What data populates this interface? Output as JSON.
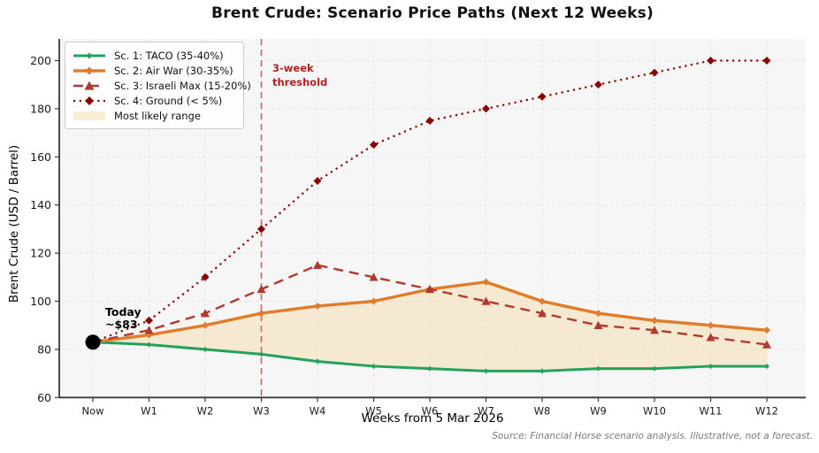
{
  "figure": {
    "source_note": "Source: Financial Horse scenario analysis. Illustrative, not a forecast."
  },
  "chart_data": {
    "type": "line",
    "title": "Brent Crude: Scenario Price Paths (Next 12 Weeks)",
    "xlabel": "Weeks from 5 Mar 2026",
    "ylabel": "Brent Crude (USD / Barrel)",
    "categories": [
      "Now",
      "W1",
      "W2",
      "W3",
      "W4",
      "W5",
      "W6",
      "W7",
      "W8",
      "W9",
      "W10",
      "W11",
      "W12"
    ],
    "yticks": [
      60,
      80,
      100,
      120,
      140,
      160,
      180,
      200
    ],
    "ylim": [
      60,
      209
    ],
    "grid": true,
    "legend_position": "upper-left",
    "plot_bg_color": "#f6f6f6",
    "grid_color": "#dcdcdc",
    "series": [
      {
        "name": "Sc. 1: TACO (35-40%)",
        "color": "#23a15d",
        "style": "solid",
        "marker": "diamond",
        "values": [
          83,
          82,
          80,
          78,
          75,
          73,
          72,
          71,
          71,
          72,
          72,
          73,
          73
        ]
      },
      {
        "name": "Sc. 2: Air War (30-35%)",
        "color": "#e07c2a",
        "style": "solid",
        "marker": "diamond",
        "values": [
          83,
          86,
          90,
          95,
          98,
          100,
          105,
          108,
          100,
          95,
          92,
          90,
          88
        ]
      },
      {
        "name": "Sc. 3: Israeli Max (15-20%)",
        "color": "#b03a2e",
        "style": "dashed",
        "marker": "triangle",
        "values": [
          83,
          88,
          95,
          105,
          115,
          110,
          105,
          100,
          95,
          90,
          88,
          85,
          82
        ]
      },
      {
        "name": "Sc. 4: Ground (< 5%)",
        "color": "#8b0000",
        "style": "dotted",
        "marker": "diamond",
        "values": [
          83,
          92,
          110,
          130,
          150,
          165,
          175,
          180,
          185,
          190,
          195,
          200,
          200
        ]
      }
    ],
    "band": {
      "label": "Most likely range",
      "color": "#f5deb3",
      "opacity": 0.55,
      "between": [
        "Sc. 1: TACO (35-40%)",
        "Sc. 2: Air War (30-35%)"
      ]
    },
    "threshold": {
      "x": "W3",
      "label_lines": "3-week\nthreshold",
      "line_color": "#c4685f",
      "text_color": "#b22222"
    },
    "annotations": [
      {
        "text_lines": "Today\n~$83",
        "x": "Now",
        "y": 83,
        "dot_color": "#000000"
      }
    ]
  }
}
